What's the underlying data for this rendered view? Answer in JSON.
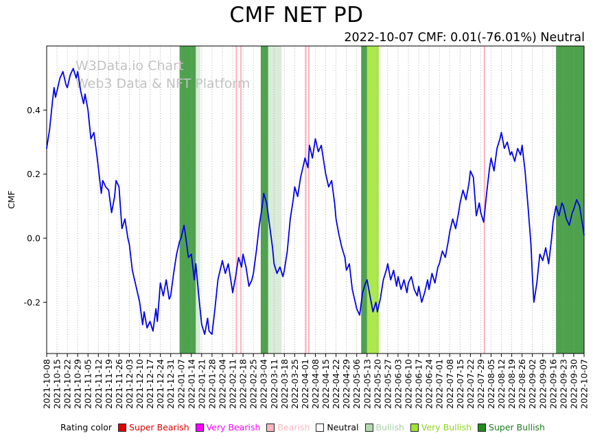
{
  "page": {
    "title": "CMF NET PD",
    "subtitle": "2022-10-07 CMF: 0.01(-76.01%) Neutral"
  },
  "watermark": {
    "line1": "W3Data.io Chart",
    "line2": "Web3 Data & NFT Platform",
    "color": "#c3c3c3"
  },
  "legend": {
    "label": "Rating color",
    "items": [
      {
        "label": "Super Bearish",
        "color": "#e00000",
        "text_color": "#e00000"
      },
      {
        "label": "Very Bearish",
        "color": "#ff00ff",
        "text_color": "#ff00ff"
      },
      {
        "label": "Bearish",
        "color": "#ffb6c1",
        "text_color": "#ffb6c1"
      },
      {
        "label": "Neutral",
        "color": "#ffffff",
        "text_color": "#000000"
      },
      {
        "label": "Bullish",
        "color": "#b4d8b4",
        "text_color": "#a8d0a8"
      },
      {
        "label": "Very Bullish",
        "color": "#9fe42f",
        "text_color": "#8fd41f"
      },
      {
        "label": "Super Bullish",
        "color": "#228b22",
        "text_color": "#1e7a1e"
      }
    ]
  },
  "chart_data": {
    "type": "line",
    "title": "CMF NET PD",
    "ylabel": "CMF",
    "ylim": [
      -0.36,
      0.6
    ],
    "yticks": [
      -0.2,
      0.0,
      0.2,
      0.4
    ],
    "grid": "dotted-vertical-weekly",
    "x_unit": "days since 2021-10-08",
    "x_range_days": [
      0,
      364
    ],
    "x_tick_interval_days": 7,
    "x_tick_labels": [
      "2021-10-08",
      "2021-10-15",
      "2021-10-22",
      "2021-10-29",
      "2021-11-05",
      "2021-11-12",
      "2021-11-19",
      "2021-11-26",
      "2021-12-03",
      "2021-12-10",
      "2021-12-17",
      "2021-12-24",
      "2021-12-31",
      "2022-01-07",
      "2022-01-14",
      "2022-01-21",
      "2022-01-28",
      "2022-02-04",
      "2022-02-11",
      "2022-02-18",
      "2022-02-25",
      "2022-03-04",
      "2022-03-11",
      "2022-03-18",
      "2022-03-25",
      "2022-04-01",
      "2022-04-08",
      "2022-04-15",
      "2022-04-22",
      "2022-04-29",
      "2022-05-06",
      "2022-05-13",
      "2022-05-20",
      "2022-05-27",
      "2022-06-03",
      "2022-06-10",
      "2022-06-17",
      "2022-06-24",
      "2022-07-01",
      "2022-07-08",
      "2022-07-15",
      "2022-07-22",
      "2022-07-29",
      "2022-08-05",
      "2022-08-12",
      "2022-08-19",
      "2022-08-26",
      "2022-09-02",
      "2022-09-09",
      "2022-09-16",
      "2022-09-23",
      "2022-09-30",
      "2022-10-07"
    ],
    "series": [
      {
        "name": "CMF",
        "color": "#0000e6",
        "points": [
          [
            0,
            0.28
          ],
          [
            2,
            0.34
          ],
          [
            4,
            0.43
          ],
          [
            5,
            0.47
          ],
          [
            6,
            0.44
          ],
          [
            7,
            0.46
          ],
          [
            9,
            0.5
          ],
          [
            11,
            0.52
          ],
          [
            13,
            0.48
          ],
          [
            14,
            0.47
          ],
          [
            16,
            0.51
          ],
          [
            18,
            0.53
          ],
          [
            20,
            0.5
          ],
          [
            21,
            0.52
          ],
          [
            23,
            0.46
          ],
          [
            25,
            0.42
          ],
          [
            26,
            0.45
          ],
          [
            28,
            0.4
          ],
          [
            30,
            0.31
          ],
          [
            32,
            0.33
          ],
          [
            34,
            0.26
          ],
          [
            35,
            0.22
          ],
          [
            37,
            0.14
          ],
          [
            38,
            0.18
          ],
          [
            40,
            0.16
          ],
          [
            42,
            0.15
          ],
          [
            44,
            0.08
          ],
          [
            46,
            0.13
          ],
          [
            47,
            0.18
          ],
          [
            49,
            0.16
          ],
          [
            51,
            0.03
          ],
          [
            53,
            0.06
          ],
          [
            55,
            0.0
          ],
          [
            56,
            -0.02
          ],
          [
            58,
            -0.1
          ],
          [
            60,
            -0.14
          ],
          [
            62,
            -0.18
          ],
          [
            63,
            -0.2
          ],
          [
            65,
            -0.27
          ],
          [
            66,
            -0.23
          ],
          [
            68,
            -0.28
          ],
          [
            70,
            -0.26
          ],
          [
            72,
            -0.29
          ],
          [
            74,
            -0.22
          ],
          [
            75,
            -0.26
          ],
          [
            77,
            -0.14
          ],
          [
            79,
            -0.18
          ],
          [
            81,
            -0.13
          ],
          [
            83,
            -0.19
          ],
          [
            84,
            -0.18
          ],
          [
            86,
            -0.11
          ],
          [
            88,
            -0.05
          ],
          [
            90,
            -0.01
          ],
          [
            91,
            0.0
          ],
          [
            93,
            0.04
          ],
          [
            94,
            0.01
          ],
          [
            96,
            -0.06
          ],
          [
            98,
            -0.05
          ],
          [
            100,
            -0.13
          ],
          [
            101,
            -0.08
          ],
          [
            103,
            -0.18
          ],
          [
            105,
            -0.27
          ],
          [
            107,
            -0.3
          ],
          [
            109,
            -0.25
          ],
          [
            110,
            -0.29
          ],
          [
            112,
            -0.3
          ],
          [
            114,
            -0.22
          ],
          [
            116,
            -0.13
          ],
          [
            118,
            -0.09
          ],
          [
            119,
            -0.07
          ],
          [
            121,
            -0.11
          ],
          [
            123,
            -0.08
          ],
          [
            125,
            -0.14
          ],
          [
            126,
            -0.17
          ],
          [
            128,
            -0.12
          ],
          [
            130,
            -0.06
          ],
          [
            132,
            -0.09
          ],
          [
            133,
            -0.05
          ],
          [
            135,
            -0.09
          ],
          [
            137,
            -0.15
          ],
          [
            139,
            -0.13
          ],
          [
            140,
            -0.11
          ],
          [
            142,
            -0.04
          ],
          [
            144,
            0.04
          ],
          [
            146,
            0.1
          ],
          [
            147,
            0.14
          ],
          [
            149,
            0.11
          ],
          [
            151,
            0.04
          ],
          [
            153,
            -0.03
          ],
          [
            154,
            -0.08
          ],
          [
            156,
            -0.11
          ],
          [
            158,
            -0.09
          ],
          [
            160,
            -0.12
          ],
          [
            161,
            -0.1
          ],
          [
            163,
            -0.04
          ],
          [
            165,
            0.06
          ],
          [
            167,
            0.12
          ],
          [
            168,
            0.16
          ],
          [
            170,
            0.13
          ],
          [
            172,
            0.19
          ],
          [
            174,
            0.23
          ],
          [
            175,
            0.25
          ],
          [
            177,
            0.22
          ],
          [
            178,
            0.29
          ],
          [
            180,
            0.25
          ],
          [
            182,
            0.31
          ],
          [
            184,
            0.27
          ],
          [
            186,
            0.29
          ],
          [
            188,
            0.23
          ],
          [
            189,
            0.2
          ],
          [
            191,
            0.16
          ],
          [
            193,
            0.18
          ],
          [
            195,
            0.11
          ],
          [
            196,
            0.06
          ],
          [
            198,
            0.01
          ],
          [
            200,
            -0.03
          ],
          [
            202,
            -0.06
          ],
          [
            203,
            -0.1
          ],
          [
            205,
            -0.08
          ],
          [
            207,
            -0.16
          ],
          [
            209,
            -0.2
          ],
          [
            210,
            -0.22
          ],
          [
            212,
            -0.24
          ],
          [
            214,
            -0.17
          ],
          [
            216,
            -0.14
          ],
          [
            217,
            -0.13
          ],
          [
            219,
            -0.18
          ],
          [
            221,
            -0.23
          ],
          [
            223,
            -0.2
          ],
          [
            224,
            -0.23
          ],
          [
            226,
            -0.19
          ],
          [
            228,
            -0.13
          ],
          [
            230,
            -0.1
          ],
          [
            231,
            -0.08
          ],
          [
            233,
            -0.13
          ],
          [
            235,
            -0.1
          ],
          [
            237,
            -0.15
          ],
          [
            238,
            -0.12
          ],
          [
            240,
            -0.16
          ],
          [
            242,
            -0.13
          ],
          [
            244,
            -0.17
          ],
          [
            245,
            -0.14
          ],
          [
            247,
            -0.12
          ],
          [
            249,
            -0.16
          ],
          [
            251,
            -0.18
          ],
          [
            252,
            -0.15
          ],
          [
            254,
            -0.2
          ],
          [
            256,
            -0.17
          ],
          [
            258,
            -0.13
          ],
          [
            259,
            -0.16
          ],
          [
            261,
            -0.11
          ],
          [
            263,
            -0.14
          ],
          [
            265,
            -0.09
          ],
          [
            266,
            -0.08
          ],
          [
            268,
            -0.04
          ],
          [
            270,
            -0.06
          ],
          [
            272,
            -0.01
          ],
          [
            273,
            0.02
          ],
          [
            275,
            0.06
          ],
          [
            277,
            0.03
          ],
          [
            279,
            0.08
          ],
          [
            280,
            0.11
          ],
          [
            282,
            0.15
          ],
          [
            284,
            0.12
          ],
          [
            286,
            0.17
          ],
          [
            287,
            0.21
          ],
          [
            289,
            0.19
          ],
          [
            291,
            0.07
          ],
          [
            293,
            0.11
          ],
          [
            294,
            0.08
          ],
          [
            296,
            0.05
          ],
          [
            298,
            0.14
          ],
          [
            300,
            0.22
          ],
          [
            301,
            0.25
          ],
          [
            303,
            0.21
          ],
          [
            305,
            0.28
          ],
          [
            307,
            0.31
          ],
          [
            308,
            0.33
          ],
          [
            310,
            0.28
          ],
          [
            312,
            0.3
          ],
          [
            314,
            0.26
          ],
          [
            315,
            0.27
          ],
          [
            317,
            0.24
          ],
          [
            319,
            0.28
          ],
          [
            321,
            0.26
          ],
          [
            322,
            0.29
          ],
          [
            324,
            0.21
          ],
          [
            326,
            0.1
          ],
          [
            328,
            -0.02
          ],
          [
            329,
            -0.12
          ],
          [
            330,
            -0.2
          ],
          [
            332,
            -0.14
          ],
          [
            334,
            -0.05
          ],
          [
            336,
            -0.07
          ],
          [
            338,
            -0.03
          ],
          [
            340,
            -0.08
          ],
          [
            342,
            0.0
          ],
          [
            343,
            0.05
          ],
          [
            345,
            0.1
          ],
          [
            347,
            0.07
          ],
          [
            349,
            0.11
          ],
          [
            350,
            0.1
          ],
          [
            352,
            0.06
          ],
          [
            354,
            0.04
          ],
          [
            356,
            0.08
          ],
          [
            357,
            0.09
          ],
          [
            359,
            0.12
          ],
          [
            361,
            0.1
          ],
          [
            363,
            0.04
          ],
          [
            364,
            0.01
          ]
        ]
      }
    ],
    "rating_colors": {
      "Super Bearish": "#e00000",
      "Very Bearish": "#ff00ff",
      "Bearish": "#ffb6c1",
      "Neutral": "#ffffff",
      "Bullish": "#b4d8b4",
      "Very Bullish": "#9fe42f",
      "Super Bullish": "#228b22"
    },
    "bands": [
      {
        "from_day": 90,
        "to_day": 101,
        "rating": "Super Bullish"
      },
      {
        "from_day": 101,
        "to_day": 104,
        "rating": "Bullish"
      },
      {
        "from_day": 128,
        "to_day": 129,
        "rating": "Bearish"
      },
      {
        "from_day": 131,
        "to_day": 132,
        "rating": "Bearish"
      },
      {
        "from_day": 145,
        "to_day": 150,
        "rating": "Super Bullish"
      },
      {
        "from_day": 150,
        "to_day": 159,
        "rating": "Bullish"
      },
      {
        "from_day": 175,
        "to_day": 176,
        "rating": "Bearish"
      },
      {
        "from_day": 177,
        "to_day": 178,
        "rating": "Bearish"
      },
      {
        "from_day": 213,
        "to_day": 217,
        "rating": "Super Bullish"
      },
      {
        "from_day": 217,
        "to_day": 225,
        "rating": "Very Bullish"
      },
      {
        "from_day": 296,
        "to_day": 297,
        "rating": "Bearish"
      },
      {
        "from_day": 345,
        "to_day": 364,
        "rating": "Super Bullish"
      }
    ]
  }
}
